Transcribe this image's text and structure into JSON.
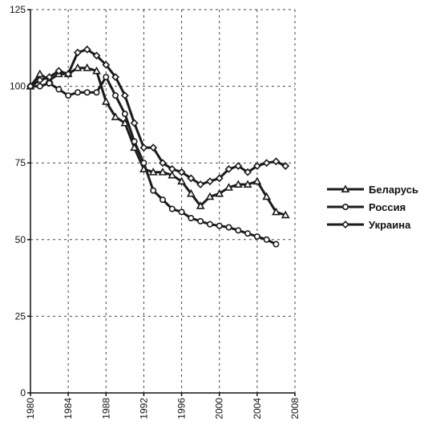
{
  "chart_data": {
    "type": "line",
    "title": "",
    "xlabel": "",
    "ylabel": "",
    "xlim": [
      1980,
      2008
    ],
    "ylim": [
      0,
      125
    ],
    "x_ticks": [
      1980,
      1984,
      1988,
      1992,
      1996,
      2000,
      2004,
      2008
    ],
    "y_ticks": [
      0,
      25,
      50,
      75,
      100,
      125
    ],
    "grid": true,
    "legend_position": "right",
    "series": [
      {
        "name": "Беларусь",
        "marker": "triangle",
        "color": "#1a1a1a",
        "x": [
          1980,
          1981,
          1982,
          1983,
          1984,
          1985,
          1986,
          1987,
          1988,
          1989,
          1990,
          1991,
          1992,
          1993,
          1994,
          1995,
          1996,
          1997,
          1998,
          1999,
          2000,
          2001,
          2002,
          2003,
          2004,
          2005,
          2006,
          2007
        ],
        "values": [
          100,
          104,
          102,
          104,
          104,
          106,
          106,
          105,
          95,
          90,
          88,
          80,
          73,
          72,
          72,
          71,
          69,
          65,
          61,
          64,
          65,
          67,
          68,
          68,
          69,
          64,
          59,
          58
        ]
      },
      {
        "name": "Россия",
        "marker": "circle",
        "color": "#1a1a1a",
        "x": [
          1980,
          1981,
          1982,
          1983,
          1984,
          1985,
          1986,
          1987,
          1988,
          1989,
          1990,
          1991,
          1992,
          1993,
          1994,
          1995,
          1996,
          1997,
          1998,
          1999,
          2000,
          2001,
          2002,
          2003,
          2004,
          2005,
          2006
        ],
        "values": [
          100,
          100,
          101,
          99,
          97,
          98,
          98,
          98,
          103,
          97,
          91,
          82,
          75,
          66,
          63,
          60,
          59,
          57,
          56,
          55,
          54.5,
          54,
          53,
          52,
          51,
          50,
          48.5
        ]
      },
      {
        "name": "Украина",
        "marker": "diamond",
        "color": "#1a1a1a",
        "x": [
          1980,
          1981,
          1982,
          1983,
          1984,
          1985,
          1986,
          1987,
          1988,
          1989,
          1990,
          1991,
          1992,
          1993,
          1994,
          1995,
          1996,
          1997,
          1998,
          1999,
          2000,
          2001,
          2002,
          2003,
          2004,
          2005,
          2006,
          2007
        ],
        "values": [
          100,
          102,
          103,
          105,
          104,
          111,
          112,
          110,
          107,
          103,
          97,
          88,
          80,
          80,
          75,
          73,
          72,
          70,
          68,
          69,
          70,
          73,
          74,
          72,
          74,
          75,
          75.5,
          74
        ]
      }
    ]
  }
}
